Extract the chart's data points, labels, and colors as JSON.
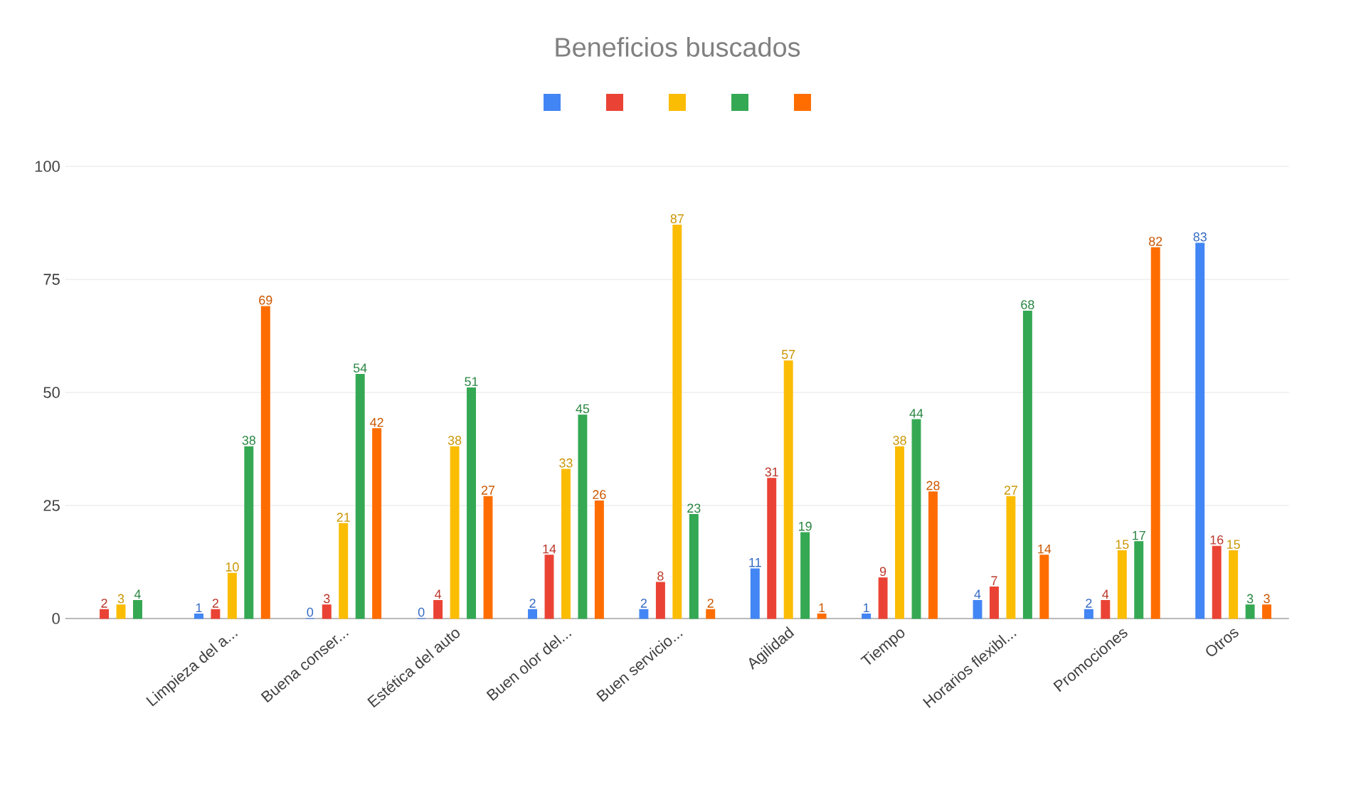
{
  "chart_data": {
    "type": "bar",
    "title": "Beneficios buscados",
    "categories": [
      null,
      "Limpieza del a...",
      "Buena conser...",
      "Estética del auto",
      "Buen olor del...",
      "Buen servicio...",
      "Agilidad",
      "Tiempo",
      "Horarios flexibl...",
      "Promociones",
      "Otros"
    ],
    "series": [
      {
        "color": "#4285f4",
        "values": [
          null,
          1,
          0,
          0,
          2,
          2,
          11,
          1,
          4,
          2,
          83
        ]
      },
      {
        "color": "#ea4335",
        "values": [
          2,
          2,
          3,
          4,
          14,
          8,
          31,
          9,
          7,
          4,
          16
        ]
      },
      {
        "color": "#fbbc04",
        "values": [
          3,
          10,
          21,
          38,
          33,
          87,
          57,
          38,
          27,
          15,
          15
        ]
      },
      {
        "color": "#34a853",
        "values": [
          4,
          38,
          54,
          51,
          45,
          23,
          19,
          44,
          68,
          17,
          3
        ]
      },
      {
        "color": "#ff6d01",
        "values": [
          null,
          69,
          42,
          27,
          26,
          2,
          1,
          28,
          14,
          82,
          3
        ]
      }
    ],
    "ylim": [
      0,
      100
    ],
    "yticks": [
      0,
      25,
      50,
      75,
      100
    ],
    "grid": "y",
    "data_labels": true
  }
}
